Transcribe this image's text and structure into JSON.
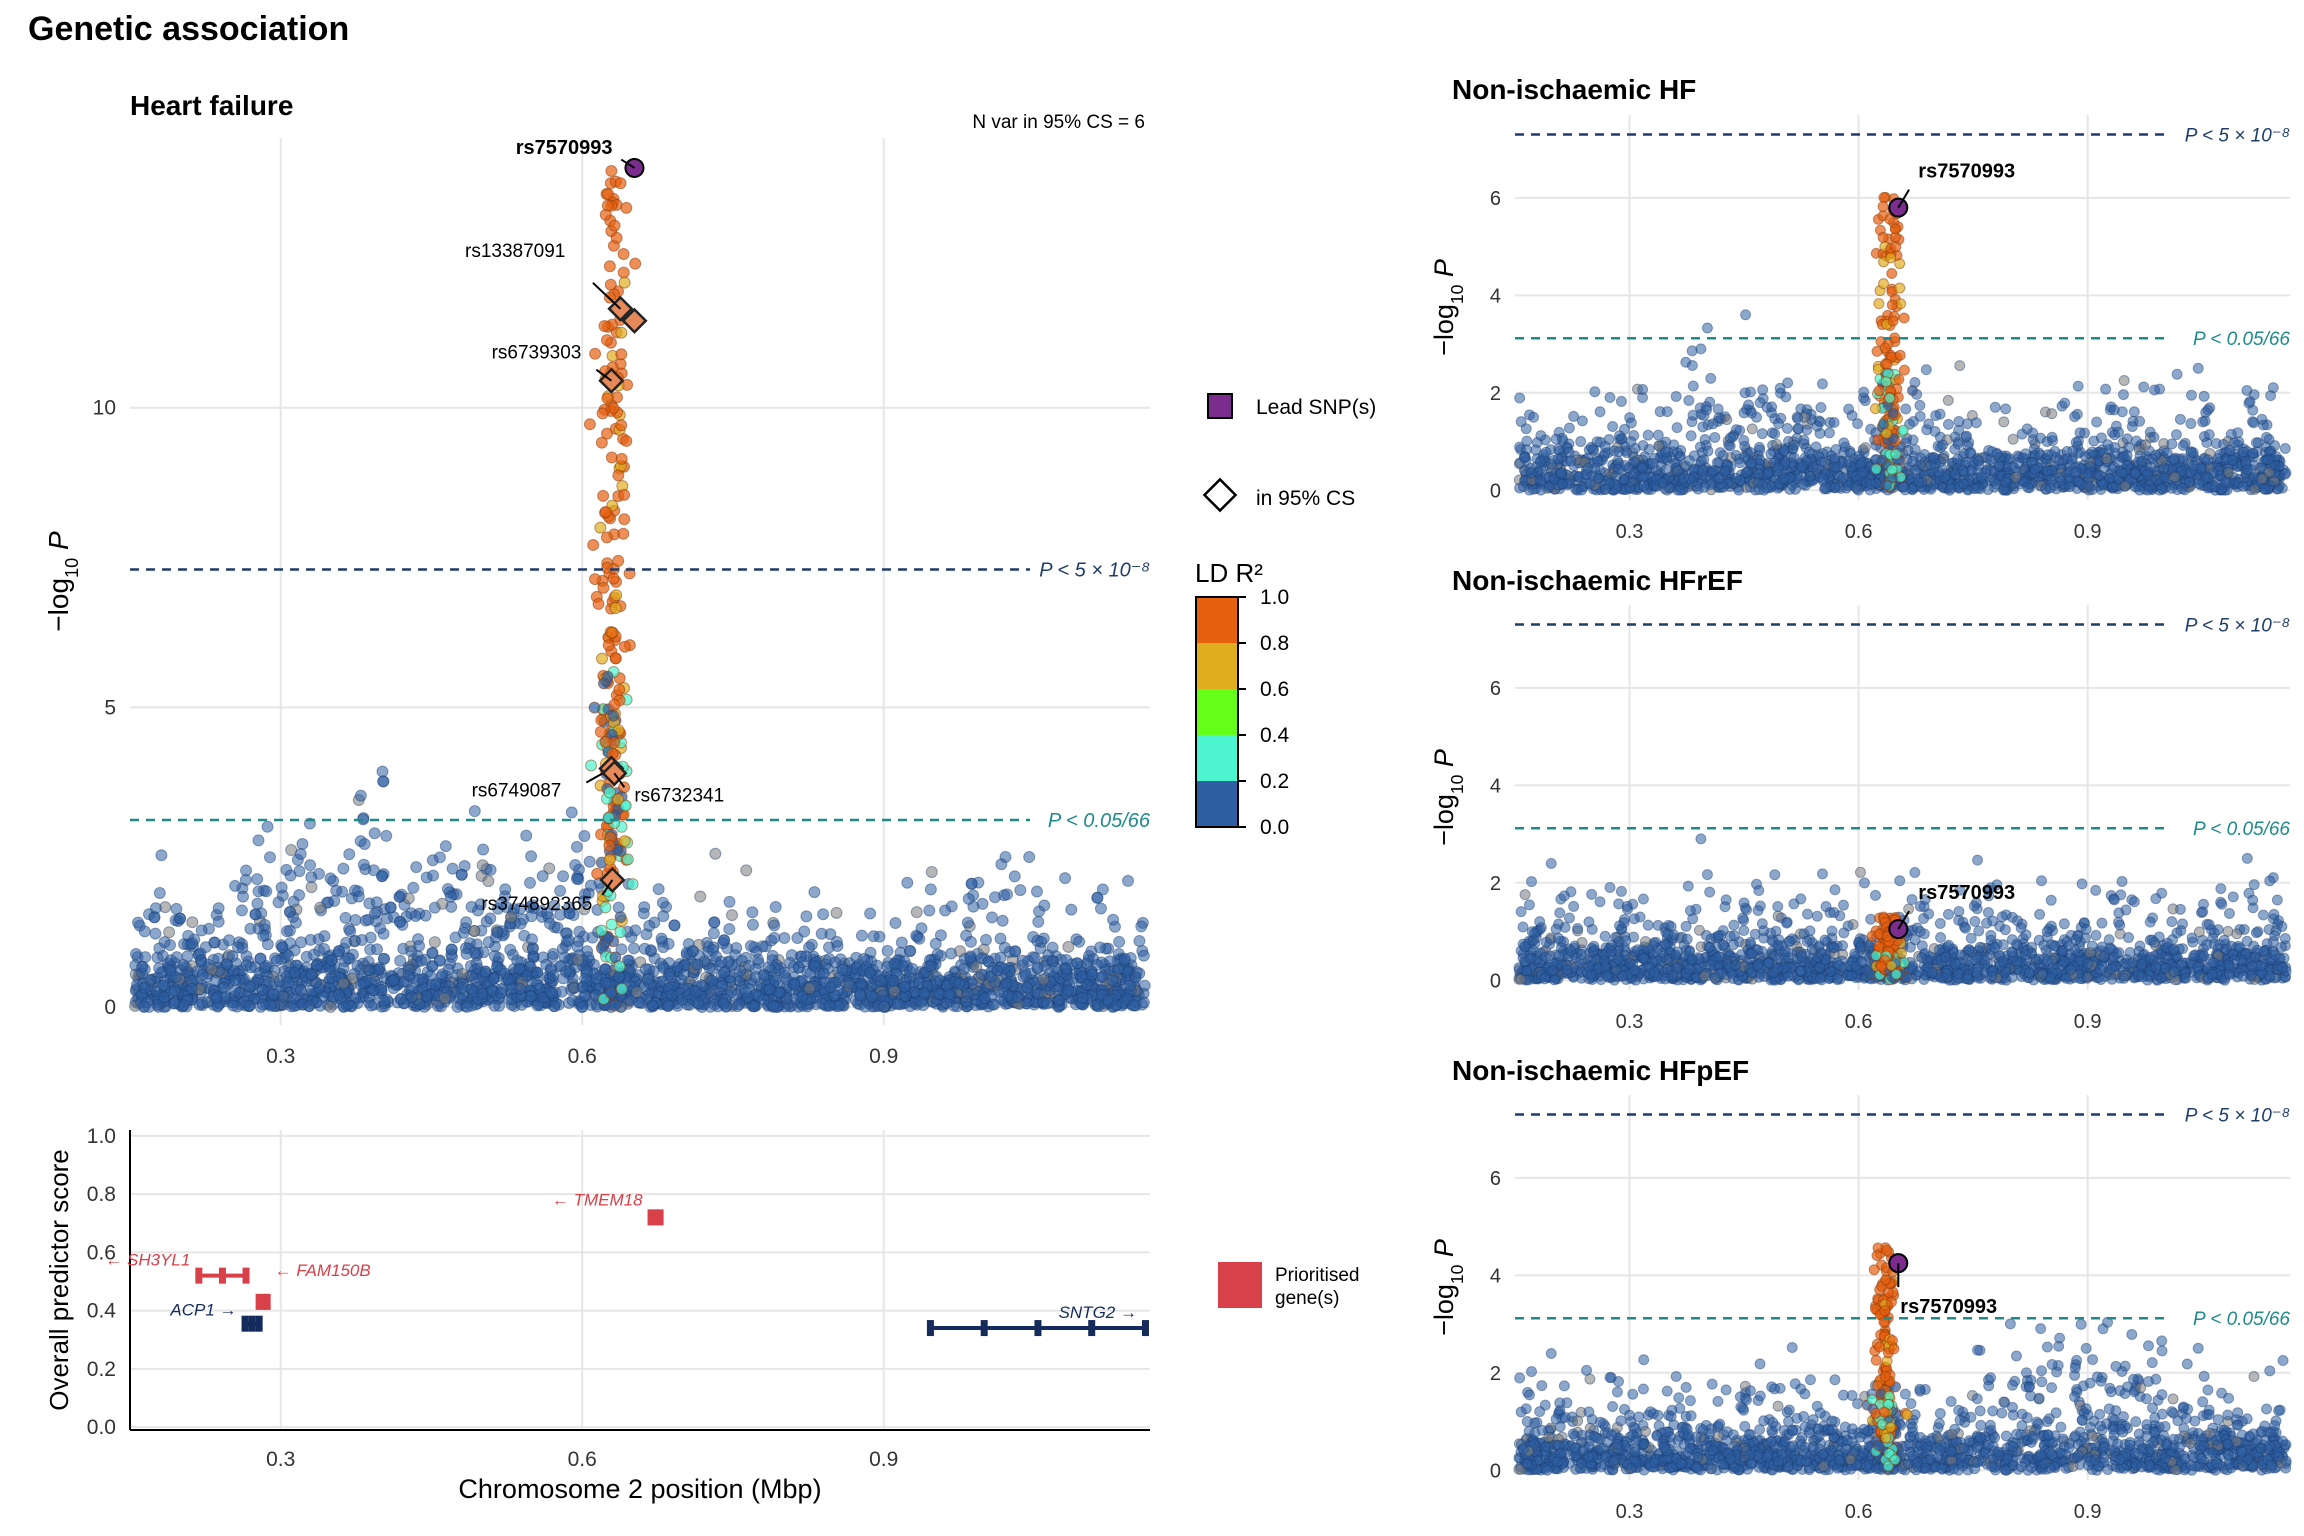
{
  "figure_title": "Genetic association",
  "colors": {
    "ld_bins": [
      "#2E5FA3",
      "#4CF5CF",
      "#66FF1A",
      "#DFAE1F",
      "#E5600F"
    ],
    "lead": "#7B2D8E",
    "gene_prioritised": "#D8404A",
    "gene_other": "#152B5C",
    "gwas_line": "#1F3D6B",
    "bonf_line": "#1F8A8A",
    "grid": "#E6E6E6"
  },
  "legend": {
    "lead_label": "Lead SNP(s)",
    "cs_label": "in 95% CS",
    "ld_title": "LD R²",
    "ld_ticks": [
      "1.0",
      "0.8",
      "0.6",
      "0.4",
      "0.2",
      "0.0"
    ],
    "prioritised_label": [
      "Prioritised",
      "gene(s)"
    ]
  },
  "chart_data": [
    {
      "type": "scatter",
      "title": "Heart failure",
      "annotation": "N var in 95% CS = 6",
      "ylabel": "−log10 P",
      "xticks": [
        0.3,
        0.6,
        0.9
      ],
      "xlim": [
        0.15,
        1.165
      ],
      "yticks": [
        0,
        5,
        10
      ],
      "ylim": [
        -0.3,
        14.5
      ],
      "thresholds": [
        {
          "y": 7.3,
          "label": "P < 5 × 10⁻⁸",
          "kind": "gwas"
        },
        {
          "y": 3.12,
          "label": "P < 0.05/66",
          "kind": "bonf"
        }
      ],
      "peak": {
        "x": 0.63,
        "max_y": 14.0
      },
      "lead": {
        "x": 0.652,
        "y": 14.0,
        "label": "rs7570993"
      },
      "credible_set": [
        {
          "x": 0.638,
          "y": 11.65,
          "label": "rs13387091"
        },
        {
          "x": 0.652,
          "y": 11.45,
          "label": ""
        },
        {
          "x": 0.629,
          "y": 10.45,
          "label": "rs6739303"
        },
        {
          "x": 0.629,
          "y": 3.98,
          "label": "rs6749087"
        },
        {
          "x": 0.632,
          "y": 3.9,
          "label": "rs6732341"
        },
        {
          "x": 0.63,
          "y": 2.12,
          "label": "rs374892365"
        }
      ]
    },
    {
      "type": "scatter",
      "title": "Non-ischaemic HF",
      "ylabel": "−log10 P",
      "xticks": [
        0.3,
        0.6,
        0.9
      ],
      "xlim": [
        0.15,
        1.165
      ],
      "yticks": [
        0,
        2,
        4,
        6
      ],
      "ylim": [
        -0.2,
        7.7
      ],
      "thresholds": [
        {
          "y": 7.3,
          "label": "P < 5 × 10⁻⁸",
          "kind": "gwas"
        },
        {
          "y": 3.12,
          "label": "P < 0.05/66",
          "kind": "bonf"
        }
      ],
      "peak": {
        "x": 0.64,
        "max_y": 6.1
      },
      "lead": {
        "x": 0.652,
        "y": 5.8,
        "label": "rs7570993"
      }
    },
    {
      "type": "scatter",
      "title": "Non-ischaemic HFrEF",
      "ylabel": "−log10 P",
      "xticks": [
        0.3,
        0.6,
        0.9
      ],
      "xlim": [
        0.15,
        1.165
      ],
      "yticks": [
        0,
        2,
        4,
        6
      ],
      "ylim": [
        -0.2,
        7.7
      ],
      "thresholds": [
        {
          "y": 7.3,
          "label": "P < 5 × 10⁻⁸",
          "kind": "gwas"
        },
        {
          "y": 3.12,
          "label": "P < 0.05/66",
          "kind": "bonf"
        }
      ],
      "peak": {
        "x": 0.64,
        "max_y": 1.3
      },
      "lead": {
        "x": 0.652,
        "y": 1.05,
        "label": "rs7570993"
      }
    },
    {
      "type": "scatter",
      "title": "Non-ischaemic HFpEF",
      "ylabel": "−log10 P",
      "xticks": [
        0.3,
        0.6,
        0.9
      ],
      "xlim": [
        0.15,
        1.165
      ],
      "yticks": [
        0,
        2,
        4,
        6
      ],
      "ylim": [
        -0.2,
        7.7
      ],
      "thresholds": [
        {
          "y": 7.3,
          "label": "P < 5 × 10⁻⁸",
          "kind": "gwas"
        },
        {
          "y": 3.12,
          "label": "P < 0.05/66",
          "kind": "bonf"
        }
      ],
      "peak": {
        "x": 0.635,
        "max_y": 4.6
      },
      "lead": {
        "x": 0.652,
        "y": 4.25,
        "label": "rs7570993"
      }
    },
    {
      "type": "gene_track",
      "ylabel": "Overall predictor score",
      "xlabel": "Chromosome 2 position (Mbp)",
      "xticks": [
        0.3,
        0.6,
        0.9
      ],
      "xlim": [
        0.15,
        1.165
      ],
      "yticks": [
        0.0,
        0.2,
        0.4,
        0.6,
        0.8,
        1.0
      ],
      "ytick_labels": [
        "0.0",
        "0.2",
        "0.4",
        "0.6",
        "0.8",
        "1.0"
      ],
      "ylim": [
        -0.01,
        1.02
      ],
      "genes": [
        {
          "name": "SH3YL1",
          "start": 0.218,
          "end": 0.265,
          "score": 0.52,
          "strand": "-",
          "prioritised": true
        },
        {
          "name": "FAM150B",
          "start": 0.278,
          "end": 0.286,
          "score": 0.43,
          "strand": "-",
          "prioritised": true
        },
        {
          "name": "ACP1",
          "start": 0.264,
          "end": 0.278,
          "score": 0.355,
          "strand": "+",
          "prioritised": false
        },
        {
          "name": "TMEM18",
          "start": 0.668,
          "end": 0.677,
          "score": 0.72,
          "strand": "-",
          "prioritised": true
        },
        {
          "name": "SNTG2",
          "start": 0.946,
          "end": 1.16,
          "score": 0.34,
          "strand": "+",
          "prioritised": false
        }
      ]
    }
  ]
}
